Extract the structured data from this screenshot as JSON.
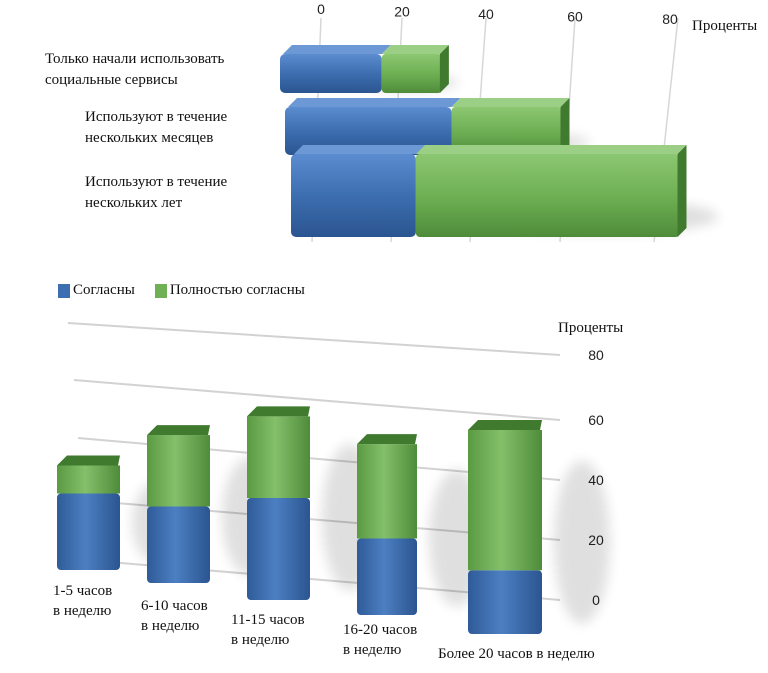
{
  "legend": {
    "items": [
      {
        "name": "Согласны",
        "color": "#3d6eb0"
      },
      {
        "name": "Полностью согласны",
        "color": "#6fb054"
      }
    ]
  },
  "chart_data": [
    {
      "type": "bar",
      "orientation": "horizontal",
      "stacked": true,
      "axis_unit_label": "Проценты",
      "xlim": [
        0,
        80
      ],
      "ticks": [
        "0",
        "20",
        "40",
        "60",
        "80"
      ],
      "categories": [
        [
          "Только начали использовать",
          "социальные сервисы"
        ],
        [
          "Используют в течение",
          "нескольких месяцев"
        ],
        [
          "Используют в течение",
          "нескольких лет"
        ]
      ],
      "series": [
        {
          "name": "Согласны",
          "values": [
            22,
            36,
            27
          ]
        },
        {
          "name": "Полностью согласны",
          "values": [
            13,
            24,
            57
          ]
        }
      ],
      "grid": true
    },
    {
      "type": "bar",
      "orientation": "vertical",
      "stacked": true,
      "axis_unit_label": "Проценты",
      "ylim": [
        0,
        80
      ],
      "ticks": [
        "0",
        "20",
        "40",
        "60",
        "80"
      ],
      "categories": [
        [
          "1-5 часов",
          "в неделю"
        ],
        [
          "6-10 часов",
          "в неделю"
        ],
        [
          "11-15 часов",
          "в неделю"
        ],
        [
          "16-20 часов",
          "в неделю"
        ],
        [
          "Более 20 часов в неделю"
        ]
      ],
      "series": [
        {
          "name": "Согласны",
          "values": [
            30,
            30,
            40,
            30,
            25
          ]
        },
        {
          "name": "Полностью согласны",
          "values": [
            11,
            28,
            32,
            37,
            55
          ]
        }
      ],
      "grid": true
    }
  ]
}
